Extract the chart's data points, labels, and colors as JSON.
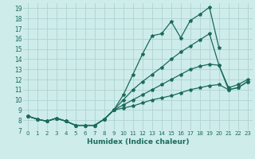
{
  "title": "",
  "xlabel": "Humidex (Indice chaleur)",
  "background_color": "#ceecea",
  "grid_color": "#aed4d0",
  "line_color": "#1a6b5a",
  "xlim": [
    -0.5,
    23.5
  ],
  "ylim": [
    7,
    19.5
  ],
  "xticks": [
    0,
    1,
    2,
    3,
    4,
    5,
    6,
    7,
    8,
    9,
    10,
    11,
    12,
    13,
    14,
    15,
    16,
    17,
    18,
    19,
    20,
    21,
    22,
    23
  ],
  "yticks": [
    7,
    8,
    9,
    10,
    11,
    12,
    13,
    14,
    15,
    16,
    17,
    18,
    19
  ],
  "lines": [
    {
      "x": [
        0,
        1,
        2,
        3,
        4,
        5,
        6,
        7,
        8,
        9,
        10,
        11,
        12,
        13,
        14,
        15,
        16,
        17,
        18,
        19,
        20
      ],
      "y": [
        8.4,
        8.1,
        7.9,
        8.2,
        7.9,
        7.5,
        7.5,
        7.5,
        8.1,
        9.0,
        10.5,
        12.5,
        14.5,
        16.3,
        16.5,
        17.7,
        16.1,
        17.8,
        18.4,
        19.1,
        15.1
      ]
    },
    {
      "x": [
        0,
        1,
        2,
        3,
        4,
        5,
        6,
        7,
        8,
        9,
        10,
        11,
        12,
        13,
        14,
        15,
        16,
        17,
        18,
        19,
        20,
        21,
        22,
        23
      ],
      "y": [
        8.4,
        8.1,
        7.9,
        8.2,
        7.9,
        7.5,
        7.5,
        7.5,
        8.1,
        9.0,
        10.0,
        11.0,
        11.8,
        12.5,
        13.2,
        14.0,
        14.7,
        15.3,
        15.9,
        16.5,
        13.4,
        11.0,
        11.2,
        11.8
      ]
    },
    {
      "x": [
        0,
        1,
        2,
        3,
        4,
        5,
        6,
        7,
        8,
        9,
        10,
        11,
        12,
        13,
        14,
        15,
        16,
        17,
        18,
        19,
        20,
        21,
        22,
        23
      ],
      "y": [
        8.4,
        8.1,
        7.9,
        8.2,
        7.9,
        7.5,
        7.5,
        7.5,
        8.1,
        9.0,
        9.5,
        10.0,
        10.5,
        11.0,
        11.5,
        12.0,
        12.5,
        13.0,
        13.3,
        13.5,
        13.4,
        11.2,
        11.5,
        12.0
      ]
    },
    {
      "x": [
        0,
        1,
        2,
        3,
        4,
        5,
        6,
        7,
        8,
        9,
        10,
        11,
        12,
        13,
        14,
        15,
        16,
        17,
        18,
        19,
        20,
        21,
        22,
        23
      ],
      "y": [
        8.4,
        8.1,
        7.9,
        8.2,
        7.9,
        7.5,
        7.5,
        7.5,
        8.1,
        9.0,
        9.2,
        9.4,
        9.7,
        10.0,
        10.2,
        10.4,
        10.7,
        11.0,
        11.2,
        11.4,
        11.5,
        11.0,
        11.2,
        11.8
      ]
    }
  ]
}
